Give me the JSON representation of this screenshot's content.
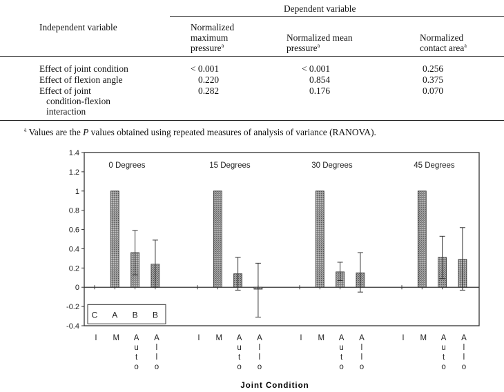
{
  "table": {
    "dependent_header": "Dependent variable",
    "independent_header": "Independent variable",
    "col_max": [
      "Normalized",
      "maximum",
      "pressure"
    ],
    "col_mean": [
      "Normalized mean",
      "pressure"
    ],
    "col_area": [
      "Normalized",
      "contact area"
    ],
    "sup_mark": "a",
    "rows": [
      {
        "label": [
          "Effect of joint condition"
        ],
        "max": "< 0.001",
        "mean": "< 0.001",
        "area": "0.256"
      },
      {
        "label": [
          "Effect of flexion angle"
        ],
        "max": "0.220",
        "mean": "0.854",
        "area": "0.375"
      },
      {
        "label": [
          "Effect of joint",
          "condition-flexion",
          "interaction"
        ],
        "max": "0.282",
        "mean": "0.176",
        "area": "0.070"
      }
    ],
    "footnote_mark": "a",
    "footnote_pre": " Values are the ",
    "footnote_p": "P",
    "footnote_post": " values obtained using repeated measures of analysis of variance (RANOVA)."
  },
  "chart_data": {
    "type": "bar",
    "xlabel": "Joint Condition",
    "ylim": [
      -0.4,
      1.4
    ],
    "y_ticks": [
      "1.4",
      "1.2",
      "1",
      "0.8",
      "0.6",
      "0.4",
      "0.2",
      "0",
      "-0.2",
      "-0.4"
    ],
    "categories": [
      "I",
      "M",
      "Auto",
      "Allo"
    ],
    "category_letters": [
      [
        "I"
      ],
      [
        "M"
      ],
      [
        "A",
        "u",
        "t",
        "o"
      ],
      [
        "A",
        "l",
        "l",
        "o"
      ]
    ],
    "groups": [
      {
        "name": "0 Degrees",
        "values": [
          0,
          1,
          0.36,
          0.24
        ],
        "err_low": [
          0,
          1,
          0.13,
          0.0
        ],
        "err_high": [
          0,
          1,
          0.59,
          0.49
        ]
      },
      {
        "name": "15 Degrees",
        "values": [
          0,
          1,
          0.14,
          -0.02
        ],
        "err_low": [
          0,
          1,
          -0.03,
          -0.31
        ],
        "err_high": [
          0,
          1,
          0.31,
          0.25
        ]
      },
      {
        "name": "30 Degrees",
        "values": [
          0,
          1,
          0.16,
          0.15
        ],
        "err_low": [
          0,
          1,
          0.07,
          -0.05
        ],
        "err_high": [
          0,
          1,
          0.26,
          0.36
        ]
      },
      {
        "name": "45 Degrees",
        "values": [
          0,
          1,
          0.31,
          0.29
        ],
        "err_low": [
          0,
          1,
          0.09,
          -0.03
        ],
        "err_high": [
          0,
          1,
          0.53,
          0.62
        ]
      }
    ],
    "significance_box": [
      "C",
      "A",
      "B",
      "B"
    ],
    "bar_color": "#8a8a8a"
  }
}
